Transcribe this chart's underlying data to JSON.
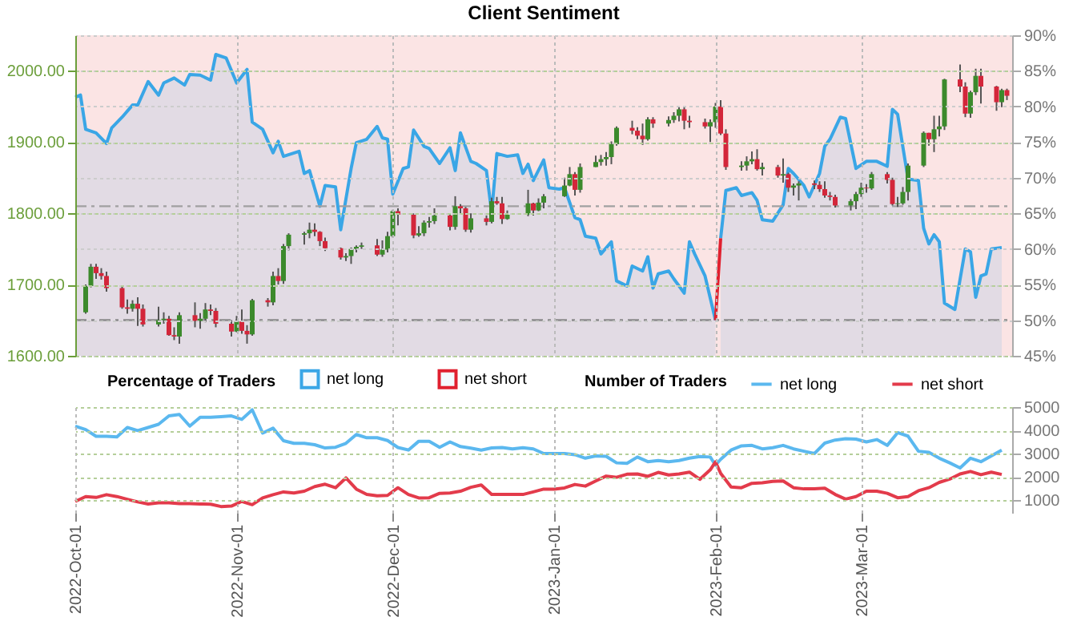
{
  "chart_data": [
    {
      "type": "candlestick",
      "title": "Client Sentiment",
      "legend_title": "Percentage of Traders",
      "legend": "bottom",
      "grid": true,
      "tick_labels": "y",
      "xlim": [
        "2022-10-01",
        "2023-03-30"
      ],
      "xticks": [
        "2022-10-01",
        "2022-11-01",
        "2022-12-01",
        "2023-01-01",
        "2023-02-01",
        "2023-03-01"
      ],
      "ylim": [
        1600,
        2050
      ],
      "yticks": [
        {
          "value": 1600,
          "label": "1600.00"
        },
        {
          "value": 1700,
          "label": "1700.00"
        },
        {
          "value": 1800,
          "label": "1800.00"
        },
        {
          "value": 1900,
          "label": "1900.00"
        },
        {
          "value": 2000,
          "label": "2000.00"
        }
      ],
      "y2lim": [
        45,
        90
      ],
      "y2ticks": [
        {
          "value": 45,
          "label": "45%"
        },
        {
          "value": 50,
          "label": "50%"
        },
        {
          "value": 55,
          "label": "55%"
        },
        {
          "value": 60,
          "label": "60%"
        },
        {
          "value": 65,
          "label": "65%"
        },
        {
          "value": 70,
          "label": "70%"
        },
        {
          "value": 75,
          "label": "75%"
        },
        {
          "value": 80,
          "label": "80%"
        },
        {
          "value": 85,
          "label": "85%"
        },
        {
          "value": 90,
          "label": "90%"
        }
      ],
      "bands": [
        {
          "axis": "y2",
          "from": 45,
          "to": 90,
          "color": "#fbe4e4"
        }
      ],
      "ref_lines": [
        {
          "axis": "y2",
          "value": 50,
          "color": "#8a8a8a",
          "line_style": "dashed"
        },
        {
          "axis": "y2",
          "value": 66,
          "color": "#a0a0a0",
          "line_style": "dashed"
        }
      ],
      "x": [
        "2022-10-03",
        "2022-10-04",
        "2022-10-05",
        "2022-10-06",
        "2022-10-07",
        "2022-10-10",
        "2022-10-11",
        "2022-10-12",
        "2022-10-13",
        "2022-10-14",
        "2022-10-17",
        "2022-10-18",
        "2022-10-19",
        "2022-10-20",
        "2022-10-21",
        "2022-10-24",
        "2022-10-25",
        "2022-10-26",
        "2022-10-27",
        "2022-10-28",
        "2022-10-31",
        "2022-11-01",
        "2022-11-02",
        "2022-11-03",
        "2022-11-04",
        "2022-11-07",
        "2022-11-08",
        "2022-11-09",
        "2022-11-10",
        "2022-11-11",
        "2022-11-14",
        "2022-11-15",
        "2022-11-16",
        "2022-11-17",
        "2022-11-18",
        "2022-11-21",
        "2022-11-22",
        "2022-11-23",
        "2022-11-24",
        "2022-11-25",
        "2022-11-28",
        "2022-11-29",
        "2022-11-30",
        "2022-12-01",
        "2022-12-02",
        "2022-12-05",
        "2022-12-06",
        "2022-12-07",
        "2022-12-08",
        "2022-12-09",
        "2022-12-12",
        "2022-12-13",
        "2022-12-14",
        "2022-12-15",
        "2022-12-16",
        "2022-12-19",
        "2022-12-20",
        "2022-12-21",
        "2022-12-22",
        "2022-12-23",
        "2022-12-27",
        "2022-12-28",
        "2022-12-29",
        "2022-12-30",
        "2023-01-03",
        "2023-01-04",
        "2023-01-05",
        "2023-01-06",
        "2023-01-09",
        "2023-01-10",
        "2023-01-11",
        "2023-01-12",
        "2023-01-13",
        "2023-01-16",
        "2023-01-17",
        "2023-01-18",
        "2023-01-19",
        "2023-01-20",
        "2023-01-23",
        "2023-01-24",
        "2023-01-25",
        "2023-01-26",
        "2023-01-27",
        "2023-01-30",
        "2023-01-31",
        "2023-02-01",
        "2023-02-02",
        "2023-02-03",
        "2023-02-06",
        "2023-02-07",
        "2023-02-08",
        "2023-02-09",
        "2023-02-10",
        "2023-02-13",
        "2023-02-14",
        "2023-02-15",
        "2023-02-16",
        "2023-02-17",
        "2023-02-20",
        "2023-02-21",
        "2023-02-22",
        "2023-02-23",
        "2023-02-24",
        "2023-02-27",
        "2023-02-28",
        "2023-03-01",
        "2023-03-02",
        "2023-03-03",
        "2023-03-06",
        "2023-03-07",
        "2023-03-08",
        "2023-03-09",
        "2023-03-10",
        "2023-03-13",
        "2023-03-14",
        "2023-03-15",
        "2023-03-16",
        "2023-03-17",
        "2023-03-20",
        "2023-03-21",
        "2023-03-22",
        "2023-03-23",
        "2023-03-24",
        "2023-03-27",
        "2023-03-28",
        "2023-03-29"
      ],
      "ohlc": [
        [
          1661,
          1700,
          1659,
          1698
        ],
        [
          1698,
          1729,
          1696,
          1725
        ],
        [
          1725,
          1729,
          1708,
          1716
        ],
        [
          1716,
          1723,
          1707,
          1712
        ],
        [
          1712,
          1718,
          1690,
          1695
        ],
        [
          1695,
          1697,
          1666,
          1668
        ],
        [
          1668,
          1679,
          1659,
          1666
        ],
        [
          1666,
          1678,
          1662,
          1673
        ],
        [
          1673,
          1682,
          1642,
          1666
        ],
        [
          1666,
          1672,
          1641,
          1644
        ],
        [
          1644,
          1669,
          1641,
          1650
        ],
        [
          1650,
          1661,
          1645,
          1652
        ],
        [
          1652,
          1656,
          1628,
          1629
        ],
        [
          1629,
          1640,
          1622,
          1627
        ],
        [
          1627,
          1661,
          1617,
          1657
        ],
        [
          1657,
          1675,
          1640,
          1649
        ],
        [
          1649,
          1660,
          1638,
          1652
        ],
        [
          1652,
          1674,
          1647,
          1665
        ],
        [
          1665,
          1672,
          1657,
          1663
        ],
        [
          1663,
          1667,
          1640,
          1645
        ],
        [
          1645,
          1650,
          1627,
          1634
        ],
        [
          1634,
          1656,
          1633,
          1648
        ],
        [
          1648,
          1665,
          1631,
          1635
        ],
        [
          1635,
          1643,
          1617,
          1630
        ],
        [
          1630,
          1680,
          1628,
          1678
        ],
        [
          1678,
          1681,
          1669,
          1675
        ],
        [
          1675,
          1718,
          1671,
          1712
        ],
        [
          1712,
          1723,
          1700,
          1705
        ],
        [
          1705,
          1757,
          1701,
          1754
        ],
        [
          1754,
          1772,
          1748,
          1770
        ],
        [
          1770,
          1774,
          1756,
          1772
        ],
        [
          1772,
          1787,
          1765,
          1777
        ],
        [
          1777,
          1786,
          1768,
          1774
        ],
        [
          1774,
          1775,
          1754,
          1761
        ],
        [
          1761,
          1766,
          1747,
          1751
        ],
        [
          1751,
          1752,
          1735,
          1738
        ],
        [
          1738,
          1744,
          1733,
          1740
        ],
        [
          1740,
          1752,
          1729,
          1750
        ],
        [
          1750,
          1755,
          1745,
          1753
        ],
        [
          1753,
          1759,
          1750,
          1755
        ],
        [
          1755,
          1764,
          1740,
          1742
        ],
        [
          1742,
          1762,
          1739,
          1749
        ],
        [
          1749,
          1774,
          1745,
          1768
        ],
        [
          1768,
          1805,
          1766,
          1803
        ],
        [
          1803,
          1807,
          1783,
          1798
        ],
        [
          1798,
          1800,
          1765,
          1769
        ],
        [
          1769,
          1782,
          1767,
          1772
        ],
        [
          1772,
          1790,
          1768,
          1787
        ],
        [
          1787,
          1795,
          1780,
          1789
        ],
        [
          1789,
          1807,
          1785,
          1797
        ],
        [
          1797,
          1799,
          1776,
          1781
        ],
        [
          1781,
          1824,
          1777,
          1810
        ],
        [
          1810,
          1813,
          1798,
          1807
        ],
        [
          1807,
          1809,
          1774,
          1777
        ],
        [
          1777,
          1800,
          1773,
          1793
        ],
        [
          1793,
          1797,
          1783,
          1788
        ],
        [
          1788,
          1822,
          1786,
          1817
        ],
        [
          1817,
          1823,
          1812,
          1814
        ],
        [
          1814,
          1823,
          1785,
          1792
        ],
        [
          1792,
          1804,
          1791,
          1798
        ],
        [
          1798,
          1833,
          1796,
          1814
        ],
        [
          1814,
          1815,
          1797,
          1804
        ],
        [
          1804,
          1821,
          1803,
          1815
        ],
        [
          1815,
          1827,
          1807,
          1824
        ],
        [
          1824,
          1850,
          1823,
          1839
        ],
        [
          1839,
          1865,
          1838,
          1855
        ],
        [
          1855,
          1858,
          1825,
          1833
        ],
        [
          1833,
          1870,
          1829,
          1865
        ],
        [
          1865,
          1881,
          1865,
          1872
        ],
        [
          1872,
          1882,
          1867,
          1876
        ],
        [
          1876,
          1886,
          1867,
          1879
        ],
        [
          1879,
          1901,
          1869,
          1897
        ],
        [
          1897,
          1922,
          1895,
          1920
        ],
        [
          1920,
          1930,
          1911,
          1916
        ],
        [
          1916,
          1921,
          1904,
          1909
        ],
        [
          1909,
          1926,
          1896,
          1904
        ],
        [
          1904,
          1935,
          1902,
          1932
        ],
        [
          1932,
          1935,
          1920,
          1926
        ],
        [
          1926,
          1936,
          1922,
          1931
        ],
        [
          1931,
          1942,
          1927,
          1937
        ],
        [
          1937,
          1949,
          1929,
          1946
        ],
        [
          1946,
          1949,
          1918,
          1930
        ],
        [
          1930,
          1937,
          1920,
          1928
        ],
        [
          1928,
          1933,
          1919,
          1922
        ],
        [
          1922,
          1932,
          1900,
          1928
        ],
        [
          1928,
          1955,
          1920,
          1950
        ],
        [
          1950,
          1959,
          1910,
          1912
        ],
        [
          1912,
          1918,
          1861,
          1865
        ],
        [
          1865,
          1873,
          1860,
          1867
        ],
        [
          1867,
          1880,
          1860,
          1873
        ],
        [
          1873,
          1887,
          1869,
          1876
        ],
        [
          1876,
          1890,
          1860,
          1862
        ],
        [
          1862,
          1871,
          1853,
          1865
        ],
        [
          1865,
          1868,
          1850,
          1853
        ],
        [
          1853,
          1877,
          1843,
          1855
        ],
        [
          1855,
          1857,
          1830,
          1836
        ],
        [
          1836,
          1842,
          1825,
          1839
        ],
        [
          1839,
          1845,
          1818,
          1842
        ],
        [
          1842,
          1846,
          1834,
          1840
        ],
        [
          1840,
          1845,
          1830,
          1834
        ],
        [
          1834,
          1845,
          1822,
          1825
        ],
        [
          1825,
          1830,
          1818,
          1823
        ],
        [
          1823,
          1826,
          1808,
          1811
        ],
        [
          1811,
          1820,
          1804,
          1817
        ],
        [
          1817,
          1830,
          1806,
          1827
        ],
        [
          1827,
          1843,
          1823,
          1836
        ],
        [
          1836,
          1841,
          1829,
          1835
        ],
        [
          1835,
          1858,
          1833,
          1855
        ],
        [
          1855,
          1858,
          1842,
          1847
        ],
        [
          1847,
          1850,
          1811,
          1813
        ],
        [
          1813,
          1823,
          1809,
          1814
        ],
        [
          1814,
          1837,
          1812,
          1830
        ],
        [
          1830,
          1870,
          1818,
          1867
        ],
        [
          1867,
          1915,
          1865,
          1913
        ],
        [
          1913,
          1913,
          1895,
          1904
        ],
        [
          1904,
          1937,
          1886,
          1918
        ],
        [
          1918,
          1937,
          1908,
          1922
        ],
        [
          1922,
          1989,
          1917,
          1988
        ],
        [
          1988,
          2009,
          1970,
          1978
        ],
        [
          1978,
          1984,
          1935,
          1940
        ],
        [
          1940,
          1972,
          1934,
          1970
        ],
        [
          1970,
          2003,
          1966,
          1993
        ],
        [
          1993,
          2003,
          1954,
          1978
        ],
        [
          1978,
          1979,
          1944,
          1956
        ],
        [
          1956,
          1975,
          1949,
          1973
        ],
        [
          1973,
          1975,
          1959,
          1965
        ]
      ],
      "series": [
        {
          "name": "net long",
          "type": "area",
          "axis": "y2",
          "color": "#3aa6e6",
          "x": [
            "2022-10-01",
            "2022-10-02",
            "2022-10-03",
            "2022-10-05",
            "2022-10-07",
            "2022-10-08",
            "2022-10-10",
            "2022-10-12",
            "2022-10-13",
            "2022-10-15",
            "2022-10-17",
            "2022-10-18",
            "2022-10-20",
            "2022-10-22",
            "2022-10-23",
            "2022-10-25",
            "2022-10-27",
            "2022-10-28",
            "2022-10-30",
            "2022-11-01",
            "2022-11-03",
            "2022-11-04",
            "2022-11-06",
            "2022-11-08",
            "2022-11-09",
            "2022-11-10",
            "2022-11-13",
            "2022-11-14",
            "2022-11-15",
            "2022-11-17",
            "2022-11-18",
            "2022-11-20",
            "2022-11-21",
            "2022-11-23",
            "2022-11-24",
            "2022-11-26",
            "2022-11-28",
            "2022-11-29",
            "2022-11-30",
            "2022-12-01",
            "2022-12-03",
            "2022-12-04",
            "2022-12-05",
            "2022-12-07",
            "2022-12-08",
            "2022-12-10",
            "2022-12-12",
            "2022-12-13",
            "2022-12-14",
            "2022-12-16",
            "2022-12-17",
            "2022-12-19",
            "2022-12-20",
            "2022-12-21",
            "2022-12-23",
            "2022-12-25",
            "2022-12-26",
            "2022-12-27",
            "2022-12-28",
            "2022-12-30",
            "2022-12-31",
            "2023-01-02",
            "2023-01-03",
            "2023-01-05",
            "2023-01-06",
            "2023-01-07",
            "2023-01-09",
            "2023-01-10",
            "2023-01-12",
            "2023-01-13",
            "2023-01-15",
            "2023-01-16",
            "2023-01-18",
            "2023-01-19",
            "2023-01-20",
            "2023-01-21",
            "2023-01-23",
            "2023-01-24",
            "2023-01-26",
            "2023-01-27",
            "2023-01-28",
            "2023-01-30",
            "2023-02-01",
            "2023-02-01T12:00",
            "2023-02-02",
            "2023-02-03",
            "2023-02-05",
            "2023-02-06",
            "2023-02-08",
            "2023-02-09",
            "2023-02-10",
            "2023-02-12",
            "2023-02-14",
            "2023-02-15",
            "2023-02-16",
            "2023-02-18",
            "2023-02-19",
            "2023-02-21",
            "2023-02-22",
            "2023-02-23",
            "2023-02-25",
            "2023-02-26",
            "2023-02-28",
            "2023-03-02",
            "2023-03-04",
            "2023-03-06",
            "2023-03-07",
            "2023-03-08",
            "2023-03-10",
            "2023-03-12",
            "2023-03-13",
            "2023-03-14",
            "2023-03-15",
            "2023-03-16",
            "2023-03-17",
            "2023-03-19",
            "2023-03-21",
            "2023-03-22",
            "2023-03-23",
            "2023-03-24",
            "2023-03-25",
            "2023-03-26",
            "2023-03-28"
          ],
          "values": [
            81.3,
            81.6,
            76.8,
            76.3,
            74.8,
            77,
            78.5,
            80.2,
            80.2,
            83.5,
            81.6,
            83.3,
            84,
            83,
            84.5,
            84.4,
            83.7,
            87.3,
            86.8,
            83.3,
            85.2,
            77.8,
            76.8,
            73.5,
            75.1,
            73,
            73.7,
            70.6,
            71,
            66,
            68.9,
            68.7,
            62.7,
            71.3,
            74.9,
            75.4,
            77.2,
            75.6,
            75.4,
            67.7,
            71.3,
            71.5,
            76.7,
            74.4,
            74.1,
            72,
            74.2,
            71,
            76.3,
            72.3,
            72,
            71,
            65.1,
            73.4,
            73,
            73.2,
            70.6,
            71.9,
            69.6,
            72.5,
            68.6,
            68.4,
            68.6,
            64.4,
            64.1,
            61.8,
            61.5,
            59.3,
            61,
            55.5,
            54.8,
            57.6,
            56.9,
            58.9,
            54.5,
            56.5,
            56.9,
            55.8,
            53.8,
            61,
            59.3,
            56.2,
            50,
            null,
            61.5,
            68.2,
            68.6,
            67.5,
            67.9,
            66.8,
            64.1,
            63.9,
            66.2,
            71.3,
            70.6,
            68.9,
            67.3,
            70.6,
            74.4,
            75.4,
            78.5,
            78.3,
            71.3,
            72.3,
            72.3,
            71.6,
            79.6,
            78.9,
            69.8,
            69.6,
            62.9,
            60.7,
            62,
            61,
            52.4,
            51.5,
            60,
            59.6,
            53.2,
            56.2,
            56.5,
            60,
            60.2
          ]
        },
        {
          "name": "net short",
          "type": "line",
          "axis": "y2",
          "color": "#e0202f",
          "x": [
            "2023-02-01",
            "2023-02-02"
          ],
          "values": [
            50,
            61.5
          ]
        }
      ]
    },
    {
      "type": "line",
      "legend_title": "Number of Traders",
      "legend": "top",
      "grid": true,
      "xlim": [
        "2022-10-01",
        "2023-03-30"
      ],
      "xticks": [
        {
          "value": "2022-10-01",
          "label": "2022-Oct-01"
        },
        {
          "value": "2022-11-01",
          "label": "2022-Nov-01"
        },
        {
          "value": "2022-12-01",
          "label": "2022-Dec-01"
        },
        {
          "value": "2023-01-01",
          "label": "2023-Jan-01"
        },
        {
          "value": "2023-02-01",
          "label": "2023-Feb-01"
        },
        {
          "value": "2023-03-01",
          "label": "2023-Mar-01"
        }
      ],
      "y2lim": [
        450,
        5000
      ],
      "y2ticks": [
        1000,
        2000,
        3000,
        4000,
        5000
      ],
      "x": [
        "2022-10-01",
        "2022-10-03",
        "2022-10-05",
        "2022-10-07",
        "2022-10-09",
        "2022-10-11",
        "2022-10-13",
        "2022-10-15",
        "2022-10-17",
        "2022-10-19",
        "2022-10-21",
        "2022-10-23",
        "2022-10-25",
        "2022-10-27",
        "2022-10-29",
        "2022-10-31",
        "2022-11-02",
        "2022-11-04",
        "2022-11-06",
        "2022-11-08",
        "2022-11-10",
        "2022-11-12",
        "2022-11-14",
        "2022-11-16",
        "2022-11-18",
        "2022-11-20",
        "2022-11-22",
        "2022-11-24",
        "2022-11-26",
        "2022-11-28",
        "2022-11-30",
        "2022-12-02",
        "2022-12-04",
        "2022-12-06",
        "2022-12-08",
        "2022-12-10",
        "2022-12-12",
        "2022-12-14",
        "2022-12-16",
        "2022-12-18",
        "2022-12-20",
        "2022-12-22",
        "2022-12-24",
        "2022-12-26",
        "2022-12-28",
        "2022-12-30",
        "2023-01-01",
        "2023-01-03",
        "2023-01-05",
        "2023-01-07",
        "2023-01-09",
        "2023-01-11",
        "2023-01-13",
        "2023-01-15",
        "2023-01-17",
        "2023-01-19",
        "2023-01-21",
        "2023-01-23",
        "2023-01-25",
        "2023-01-27",
        "2023-01-29",
        "2023-01-31",
        "2023-02-01",
        "2023-02-02",
        "2023-02-04",
        "2023-02-06",
        "2023-02-08",
        "2023-02-10",
        "2023-02-12",
        "2023-02-14",
        "2023-02-16",
        "2023-02-18",
        "2023-02-20",
        "2023-02-22",
        "2023-02-24",
        "2023-02-26",
        "2023-02-28",
        "2023-03-02",
        "2023-03-04",
        "2023-03-06",
        "2023-03-08",
        "2023-03-10",
        "2023-03-12",
        "2023-03-14",
        "2023-03-16",
        "2023-03-18",
        "2023-03-20",
        "2023-03-22",
        "2023-03-24",
        "2023-03-26",
        "2023-03-28"
      ],
      "series": [
        {
          "name": "net long",
          "type": "line",
          "axis": "y2",
          "color": "#5bb8ef",
          "values": [
            4180,
            4030,
            3740,
            3740,
            3720,
            4120,
            3990,
            4120,
            4260,
            4620,
            4680,
            4180,
            4560,
            4560,
            4590,
            4620,
            4470,
            4880,
            3880,
            4090,
            3550,
            3440,
            3440,
            3380,
            3240,
            3270,
            3440,
            3820,
            3680,
            3680,
            3560,
            3260,
            3150,
            3530,
            3530,
            3270,
            3500,
            3300,
            3230,
            3150,
            3240,
            3260,
            3200,
            3250,
            3200,
            3000,
            3000,
            3000,
            2950,
            2800,
            2900,
            2880,
            2600,
            2580,
            2850,
            2650,
            2700,
            2650,
            2700,
            2800,
            2870,
            2850,
            2500,
            2750,
            3150,
            3330,
            3350,
            3200,
            3250,
            3350,
            3200,
            3100,
            3000,
            3450,
            3580,
            3640,
            3620,
            3500,
            3600,
            3350,
            3900,
            3750,
            3100,
            3050,
            2800,
            2600,
            2380,
            2800,
            2650,
            2900,
            3150
          ]
        },
        {
          "name": "net short",
          "type": "line",
          "axis": "y2",
          "color": "#e33b4b",
          "values": [
            940,
            1150,
            1110,
            1230,
            1150,
            1030,
            920,
            830,
            880,
            880,
            850,
            850,
            830,
            820,
            720,
            740,
            940,
            800,
            1090,
            1230,
            1350,
            1300,
            1380,
            1580,
            1680,
            1530,
            1950,
            1470,
            1240,
            1180,
            1200,
            1530,
            1240,
            1090,
            1100,
            1290,
            1300,
            1380,
            1550,
            1650,
            1240,
            1240,
            1240,
            1240,
            1350,
            1470,
            1470,
            1520,
            1670,
            1600,
            1820,
            2030,
            1980,
            2110,
            2120,
            2020,
            2190,
            2080,
            2120,
            2200,
            1890,
            2300,
            2640,
            2150,
            1560,
            1530,
            1720,
            1740,
            1800,
            1820,
            1530,
            1480,
            1480,
            1510,
            1240,
            1040,
            1150,
            1380,
            1380,
            1290,
            1100,
            1150,
            1400,
            1530,
            1760,
            1900,
            2120,
            2230,
            2090,
            2200,
            2100
          ]
        }
      ]
    }
  ]
}
